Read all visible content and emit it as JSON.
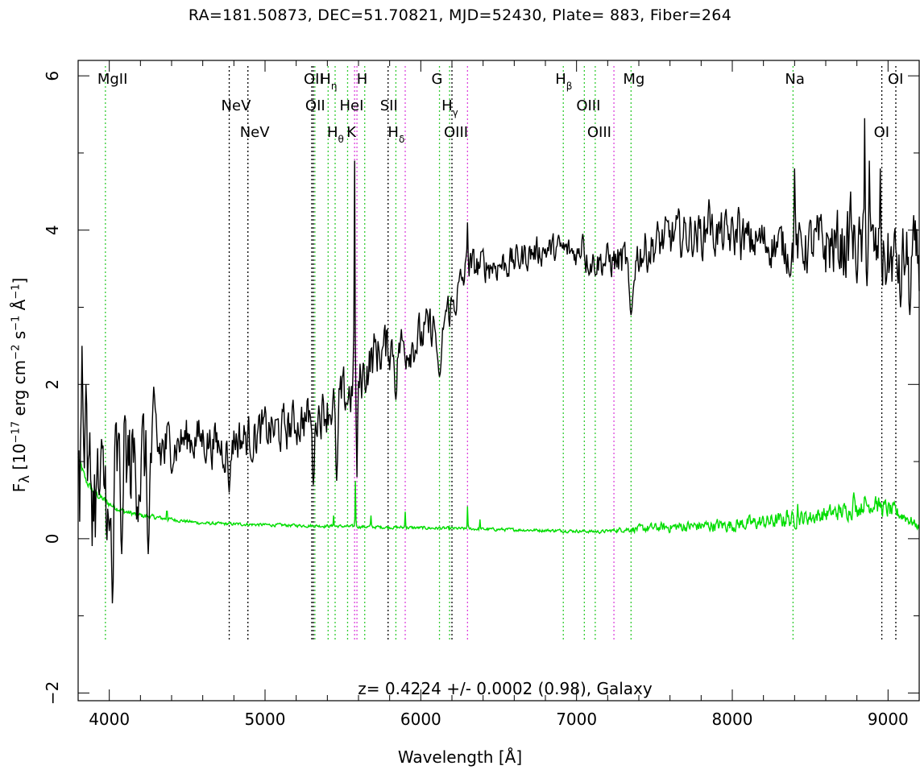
{
  "chart_data": {
    "type": "line",
    "title": "RA=181.50873, DEC=51.70821, MJD=52430, Plate=  883, Fiber=264",
    "xlabel": "Wavelength [Å]",
    "ylabel": {
      "prefix": "F",
      "sub": "λ",
      "text1": " [10",
      "exp1": "−17",
      "text2": " erg cm",
      "exp2": "−2",
      "text3": " s",
      "exp3": "−1",
      "text4": " Å",
      "exp4": "−1",
      "text5": "]"
    },
    "xlim": [
      3800,
      9200
    ],
    "ylim": [
      -2.1,
      6.2
    ],
    "xticks": [
      4000,
      5000,
      6000,
      7000,
      8000,
      9000
    ],
    "yticks": [
      -2,
      0,
      2,
      4,
      6
    ],
    "annotation": "z= 0.4224 +/- 0.0002 (0.98), Galaxy",
    "grid": false,
    "colors": {
      "spectrum": "#000000",
      "error": "#00dd00",
      "green_line": "#33cc33",
      "magenta_line": "#dd44dd",
      "black_line": "#000000"
    },
    "flux_anchors": [
      [
        3800,
        0.5
      ],
      [
        3850,
        0.7
      ],
      [
        3900,
        0.6
      ],
      [
        3950,
        0.5
      ],
      [
        4000,
        0.8
      ],
      [
        4100,
        0.9
      ],
      [
        4200,
        1.0
      ],
      [
        4300,
        1.1
      ],
      [
        4400,
        1.2
      ],
      [
        4500,
        1.3
      ],
      [
        4600,
        1.3
      ],
      [
        4700,
        1.2
      ],
      [
        4750,
        1.2
      ],
      [
        4800,
        1.3
      ],
      [
        4900,
        1.3
      ],
      [
        5000,
        1.4
      ],
      [
        5100,
        1.4
      ],
      [
        5200,
        1.5
      ],
      [
        5300,
        1.6
      ],
      [
        5400,
        1.7
      ],
      [
        5500,
        1.8
      ],
      [
        5600,
        2.0
      ],
      [
        5700,
        2.4
      ],
      [
        5800,
        2.5
      ],
      [
        5900,
        2.5
      ],
      [
        6000,
        2.6
      ],
      [
        6100,
        2.8
      ],
      [
        6200,
        3.0
      ],
      [
        6300,
        3.5
      ],
      [
        6400,
        3.55
      ],
      [
        6500,
        3.55
      ],
      [
        6600,
        3.6
      ],
      [
        6700,
        3.7
      ],
      [
        6800,
        3.75
      ],
      [
        6900,
        3.75
      ],
      [
        7000,
        3.7
      ],
      [
        7100,
        3.6
      ],
      [
        7200,
        3.6
      ],
      [
        7300,
        3.6
      ],
      [
        7400,
        3.7
      ],
      [
        7500,
        3.8
      ],
      [
        7600,
        3.9
      ],
      [
        7700,
        3.95
      ],
      [
        7800,
        3.95
      ],
      [
        7900,
        3.95
      ],
      [
        8000,
        3.9
      ],
      [
        8100,
        3.85
      ],
      [
        8200,
        3.85
      ],
      [
        8300,
        3.8
      ],
      [
        8400,
        3.75
      ],
      [
        8500,
        3.8
      ],
      [
        8600,
        3.8
      ],
      [
        8700,
        3.8
      ],
      [
        8800,
        3.75
      ],
      [
        8900,
        3.7
      ],
      [
        9000,
        3.6
      ],
      [
        9100,
        3.6
      ],
      [
        9200,
        3.6
      ]
    ],
    "flux_features": [
      {
        "x": 3825,
        "y": 2.5,
        "w": 8
      },
      {
        "x": 3850,
        "y": 2.0,
        "w": 8
      },
      {
        "x": 4020,
        "y": -0.9,
        "w": 10
      },
      {
        "x": 4000,
        "y": 0.1,
        "w": 12
      },
      {
        "x": 4080,
        "y": -0.2,
        "w": 10
      },
      {
        "x": 4100,
        "y": 1.6,
        "w": 8
      },
      {
        "x": 4250,
        "y": -0.2,
        "w": 10
      },
      {
        "x": 4770,
        "y": 0.6,
        "w": 10
      },
      {
        "x": 5310,
        "y": 0.7,
        "w": 10
      },
      {
        "x": 5460,
        "y": 0.75,
        "w": 10
      },
      {
        "x": 5575,
        "y": 4.9,
        "w": 4
      },
      {
        "x": 5590,
        "y": 0.8,
        "w": 6
      },
      {
        "x": 5840,
        "y": 1.8,
        "w": 10
      },
      {
        "x": 6120,
        "y": 2.1,
        "w": 20
      },
      {
        "x": 6300,
        "y": 4.1,
        "w": 5
      },
      {
        "x": 7040,
        "y": 3.95,
        "w": 10
      },
      {
        "x": 7350,
        "y": 2.9,
        "w": 18
      },
      {
        "x": 7850,
        "y": 4.4,
        "w": 8
      },
      {
        "x": 8040,
        "y": 4.3,
        "w": 8
      },
      {
        "x": 8400,
        "y": 4.8,
        "w": 5
      },
      {
        "x": 8370,
        "y": 3.4,
        "w": 10
      },
      {
        "x": 8760,
        "y": 4.5,
        "w": 6
      },
      {
        "x": 8850,
        "y": 5.45,
        "w": 4
      },
      {
        "x": 8880,
        "y": 4.9,
        "w": 5
      },
      {
        "x": 8950,
        "y": 4.8,
        "w": 5
      },
      {
        "x": 9080,
        "y": 3.0,
        "w": 8
      },
      {
        "x": 9140,
        "y": 2.9,
        "w": 8
      }
    ],
    "flux_noise": [
      [
        3800,
        0.9
      ],
      [
        4300,
        0.7
      ],
      [
        4400,
        0.3
      ],
      [
        5300,
        0.3
      ],
      [
        5500,
        0.35
      ],
      [
        6000,
        0.3
      ],
      [
        6400,
        0.22
      ],
      [
        7000,
        0.18
      ],
      [
        7500,
        0.3
      ],
      [
        8400,
        0.3
      ],
      [
        8600,
        0.45
      ],
      [
        9200,
        0.5
      ]
    ],
    "error_anchors": [
      [
        3800,
        1.05
      ],
      [
        3850,
        0.75
      ],
      [
        3900,
        0.6
      ],
      [
        4000,
        0.45
      ],
      [
        4100,
        0.35
      ],
      [
        4200,
        0.3
      ],
      [
        4400,
        0.25
      ],
      [
        4600,
        0.2
      ],
      [
        5000,
        0.18
      ],
      [
        5500,
        0.16
      ],
      [
        6000,
        0.14
      ],
      [
        6500,
        0.12
      ],
      [
        7000,
        0.1
      ],
      [
        7150,
        0.09
      ],
      [
        7300,
        0.12
      ],
      [
        7600,
        0.15
      ],
      [
        8000,
        0.18
      ],
      [
        8400,
        0.25
      ],
      [
        8700,
        0.35
      ],
      [
        8900,
        0.45
      ],
      [
        9100,
        0.3
      ],
      [
        9200,
        0.15
      ]
    ],
    "error_features": [
      {
        "x": 4370,
        "y": 0.42,
        "w": 3
      },
      {
        "x": 5440,
        "y": 0.3,
        "w": 3
      },
      {
        "x": 5580,
        "y": 0.75,
        "w": 3
      },
      {
        "x": 5680,
        "y": 0.3,
        "w": 3
      },
      {
        "x": 5900,
        "y": 0.35,
        "w": 3
      },
      {
        "x": 6300,
        "y": 0.42,
        "w": 3
      },
      {
        "x": 6380,
        "y": 0.25,
        "w": 3
      },
      {
        "x": 8350,
        "y": 0.4,
        "w": 4
      },
      {
        "x": 8420,
        "y": 0.45,
        "w": 4
      },
      {
        "x": 8780,
        "y": 0.6,
        "w": 5
      },
      {
        "x": 8850,
        "y": 0.55,
        "w": 5
      },
      {
        "x": 8920,
        "y": 0.55,
        "w": 5
      }
    ],
    "error_noise": [
      [
        3800,
        0.05
      ],
      [
        4500,
        0.02
      ],
      [
        7200,
        0.02
      ],
      [
        7500,
        0.06
      ],
      [
        8300,
        0.1
      ],
      [
        9000,
        0.12
      ],
      [
        9200,
        0.05
      ]
    ],
    "lines": [
      {
        "x": 3975,
        "color": "green",
        "label": "MgII",
        "row": 0,
        "sub": ""
      },
      {
        "x": 4770,
        "color": "black",
        "label": "NeV",
        "row": 1,
        "sub": ""
      },
      {
        "x": 4890,
        "color": "black",
        "label": "NeV",
        "row": 2,
        "sub": ""
      },
      {
        "x": 5300,
        "color": "black",
        "label": "OII",
        "row": 0,
        "sub": ""
      },
      {
        "x": 5310,
        "color": "black",
        "label": "OII",
        "row": 1,
        "sub": ""
      },
      {
        "x": 5320,
        "color": "green",
        "label": "",
        "row": -1,
        "sub": ""
      },
      {
        "x": 5405,
        "color": "green",
        "label": "H",
        "row": 0,
        "sub": "η"
      },
      {
        "x": 5450,
        "color": "green",
        "label": "H",
        "row": 2,
        "sub": "θ"
      },
      {
        "x": 5530,
        "color": "green",
        "label": "HeI",
        "row": 1,
        "sub": ""
      },
      {
        "x": 5575,
        "color": "magenta",
        "label": "K",
        "row": 2,
        "sub": ""
      },
      {
        "x": 5590,
        "color": "magenta",
        "label": "",
        "row": -1,
        "sub": ""
      },
      {
        "x": 5640,
        "color": "green",
        "label": "H",
        "row": 0,
        "sub": ""
      },
      {
        "x": 5790,
        "color": "black",
        "label": "SII",
        "row": 1,
        "sub": ""
      },
      {
        "x": 5840,
        "color": "green",
        "label": "H",
        "row": 2,
        "sub": "δ"
      },
      {
        "x": 5900,
        "color": "magenta",
        "label": "",
        "row": -1,
        "sub": ""
      },
      {
        "x": 6120,
        "color": "green",
        "label": "G",
        "row": 0,
        "sub": ""
      },
      {
        "x": 6185,
        "color": "green",
        "label": "H",
        "row": 1,
        "sub": "γ"
      },
      {
        "x": 6200,
        "color": "black",
        "label": "OIII",
        "row": 2,
        "sub": ""
      },
      {
        "x": 6300,
        "color": "magenta",
        "label": "",
        "row": -1,
        "sub": ""
      },
      {
        "x": 6915,
        "color": "green",
        "label": "H",
        "row": 0,
        "sub": "β"
      },
      {
        "x": 7050,
        "color": "green",
        "label": "OIII",
        "row": 1,
        "sub": ""
      },
      {
        "x": 7120,
        "color": "green",
        "label": "OIII",
        "row": 2,
        "sub": ""
      },
      {
        "x": 7240,
        "color": "magenta",
        "label": "",
        "row": -1,
        "sub": ""
      },
      {
        "x": 7350,
        "color": "green",
        "label": "Mg",
        "row": 0,
        "sub": ""
      },
      {
        "x": 8390,
        "color": "green",
        "label": "Na",
        "row": 0,
        "sub": ""
      },
      {
        "x": 8960,
        "color": "black",
        "label": "OI",
        "row": 2,
        "sub": ""
      },
      {
        "x": 9050,
        "color": "black",
        "label": "OI",
        "row": 0,
        "sub": ""
      }
    ]
  }
}
